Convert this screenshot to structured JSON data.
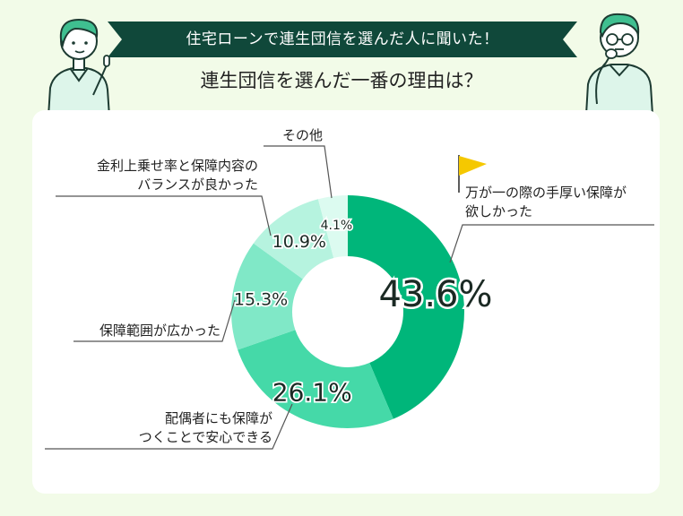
{
  "header": {
    "banner": "住宅ローンで連生団信を選んだ人に聞いた！",
    "subtitle": "連生団信を選んだ一番の理由は？"
  },
  "colors": {
    "banner_bg": "#10483a",
    "page_bg": "#f2fbe8",
    "card_bg": "#ffffff",
    "flag": "#f5c800"
  },
  "icons": [
    "person-left-icon",
    "person-right-icon",
    "flag-icon"
  ],
  "chart_data": {
    "type": "donut",
    "title": "連生団信を選んだ一番の理由は？",
    "unit": "%",
    "slices": [
      {
        "label_lines": [
          "万が一の際の手厚い保障が",
          "欲しかった"
        ],
        "value": 43.6,
        "display": "43.6%",
        "color": "#00b67a"
      },
      {
        "label_lines": [
          "配偶者にも保障が",
          "つくことで安心できる"
        ],
        "value": 26.1,
        "display": "26.1%",
        "color": "#45d9a8"
      },
      {
        "label_lines": [
          "保障範囲が広かった"
        ],
        "value": 15.3,
        "display": "15.3%",
        "color": "#80e8c7"
      },
      {
        "label_lines": [
          "金利上乗せ率と保障内容の",
          "バランスが良かった"
        ],
        "value": 10.9,
        "display": "10.9%",
        "color": "#b6f3df"
      },
      {
        "label_lines": [
          "その他"
        ],
        "value": 4.1,
        "display": "4.1%",
        "color": "#dcfbf0"
      }
    ]
  }
}
